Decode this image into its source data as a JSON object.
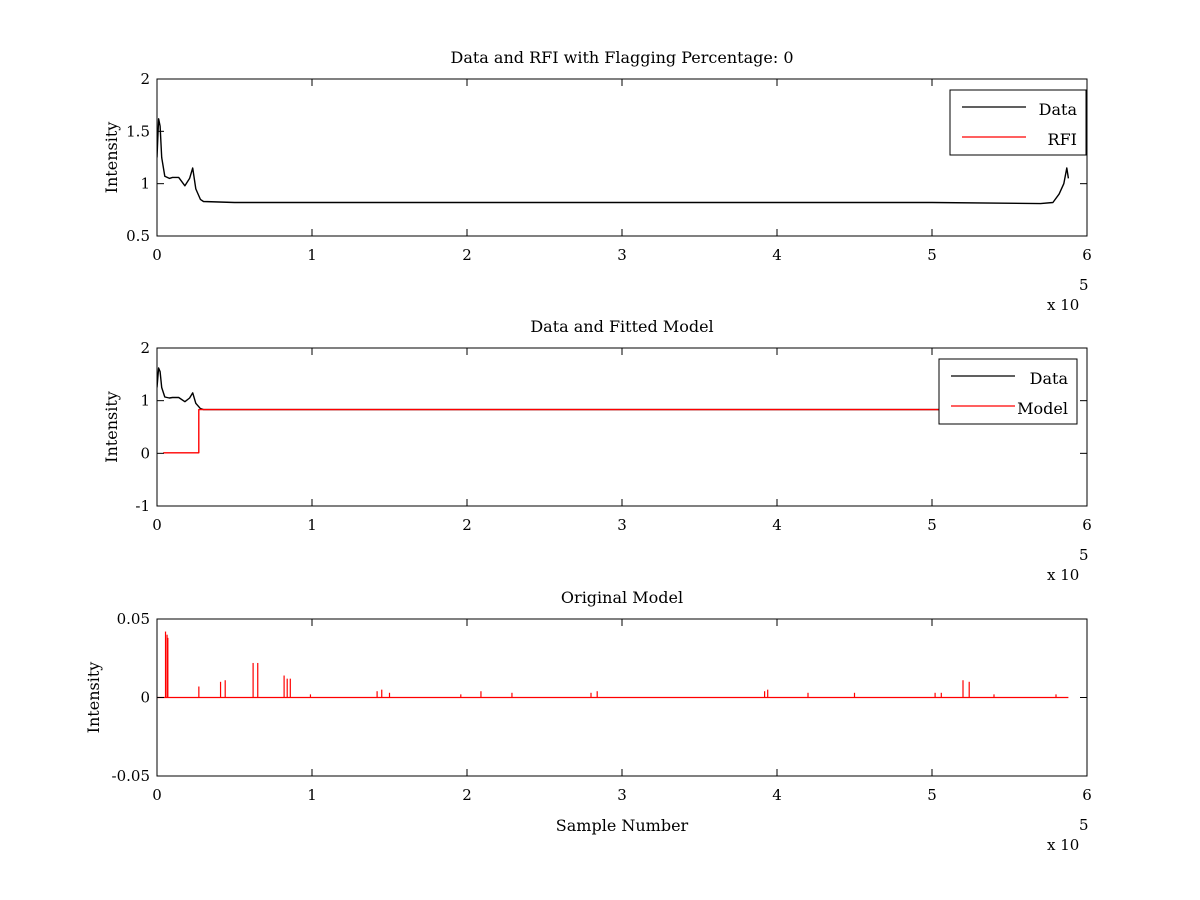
{
  "chart_data": [
    {
      "type": "line",
      "title": "Data and RFI with Flagging Percentage: 0",
      "xlabel": "",
      "ylabel": "Intensity",
      "xlim": [
        0,
        600000
      ],
      "ylim": [
        0.5,
        2
      ],
      "x_ticks": [
        0,
        1,
        2,
        3,
        4,
        5,
        6
      ],
      "x_tick_labels": [
        "0",
        "1",
        "2",
        "3",
        "4",
        "5",
        "6"
      ],
      "x_exponent_label": "x 10",
      "x_exponent_power": "5",
      "y_ticks": [
        0.5,
        1,
        1.5,
        2
      ],
      "y_tick_labels": [
        "0.5",
        "1",
        "1.5",
        "2"
      ],
      "legend_position": "top-right",
      "grid": false,
      "series": [
        {
          "name": "Data",
          "color": "#000000",
          "x": [
            0,
            1000,
            2000,
            3000,
            5000,
            8000,
            10000,
            14000,
            18000,
            21000,
            23000,
            25000,
            28000,
            30000,
            50000,
            100000,
            200000,
            300000,
            400000,
            500000,
            570000,
            578000,
            582000,
            585000,
            587000,
            588000
          ],
          "y": [
            1.25,
            1.62,
            1.55,
            1.25,
            1.07,
            1.05,
            1.06,
            1.06,
            0.98,
            1.05,
            1.15,
            0.95,
            0.85,
            0.83,
            0.82,
            0.82,
            0.82,
            0.82,
            0.82,
            0.82,
            0.81,
            0.82,
            0.9,
            1.0,
            1.15,
            1.05
          ]
        },
        {
          "name": "RFI",
          "color": "#ff0000",
          "x": [],
          "y": []
        }
      ]
    },
    {
      "type": "line",
      "title": "Data and Fitted Model",
      "xlabel": "",
      "ylabel": "Intensity",
      "xlim": [
        0,
        600000
      ],
      "ylim": [
        -1,
        2
      ],
      "x_ticks": [
        0,
        1,
        2,
        3,
        4,
        5,
        6
      ],
      "x_tick_labels": [
        "0",
        "1",
        "2",
        "3",
        "4",
        "5",
        "6"
      ],
      "x_exponent_label": "x 10",
      "x_exponent_power": "5",
      "y_ticks": [
        -1,
        0,
        1,
        2
      ],
      "y_tick_labels": [
        "-1",
        "0",
        "1",
        "2"
      ],
      "legend_position": "top-right",
      "grid": false,
      "series": [
        {
          "name": "Data",
          "color": "#000000",
          "x": [
            0,
            1000,
            2000,
            3000,
            5000,
            8000,
            10000,
            14000,
            18000,
            21000,
            23000,
            25000,
            28000,
            30000,
            50000,
            100000,
            200000,
            300000,
            400000,
            500000,
            510000
          ],
          "y": [
            1.25,
            1.62,
            1.55,
            1.25,
            1.07,
            1.05,
            1.06,
            1.06,
            0.98,
            1.05,
            1.15,
            0.95,
            0.85,
            0.83,
            0.83,
            0.83,
            0.83,
            0.83,
            0.83,
            0.83,
            0.83
          ]
        },
        {
          "name": "Model",
          "color": "#ff0000",
          "x": [
            4000,
            27000,
            27000,
            50000,
            100000,
            200000,
            300000,
            400000,
            500000,
            510000
          ],
          "y": [
            0.01,
            0.01,
            0.83,
            0.83,
            0.83,
            0.83,
            0.83,
            0.83,
            0.83,
            0.83
          ]
        }
      ]
    },
    {
      "type": "line",
      "title": "Original Model",
      "xlabel": "Sample Number",
      "ylabel": "Intensity",
      "xlim": [
        0,
        600000
      ],
      "ylim": [
        -0.05,
        0.05
      ],
      "x_ticks": [
        0,
        1,
        2,
        3,
        4,
        5,
        6
      ],
      "x_tick_labels": [
        "0",
        "1",
        "2",
        "3",
        "4",
        "5",
        "6"
      ],
      "x_exponent_label": "x 10",
      "x_exponent_power": "5",
      "y_ticks": [
        -0.05,
        0,
        0.05
      ],
      "y_tick_labels": [
        "-0.05",
        "0",
        "0.05"
      ],
      "legend_position": "none",
      "grid": false,
      "series": [
        {
          "name": "",
          "color": "#ff0000",
          "baseline_x_range": [
            0,
            588000
          ],
          "spikes_x": [
            5500,
            6500,
            7000,
            27000,
            41000,
            44000,
            62000,
            65000,
            82000,
            84000,
            86000,
            99000,
            142000,
            145000,
            150000,
            196000,
            209000,
            229000,
            280000,
            284000,
            392000,
            394000,
            420000,
            450000,
            502000,
            506000,
            520000,
            524000,
            540000,
            580000
          ],
          "spikes_y": [
            0.042,
            0.04,
            0.038,
            0.007,
            0.01,
            0.011,
            0.022,
            0.022,
            0.014,
            0.012,
            0.012,
            0.002,
            0.004,
            0.005,
            0.003,
            0.002,
            0.004,
            0.003,
            0.003,
            0.004,
            0.004,
            0.005,
            0.003,
            0.003,
            0.003,
            0.003,
            0.011,
            0.01,
            0.002,
            0.002
          ]
        }
      ]
    }
  ]
}
